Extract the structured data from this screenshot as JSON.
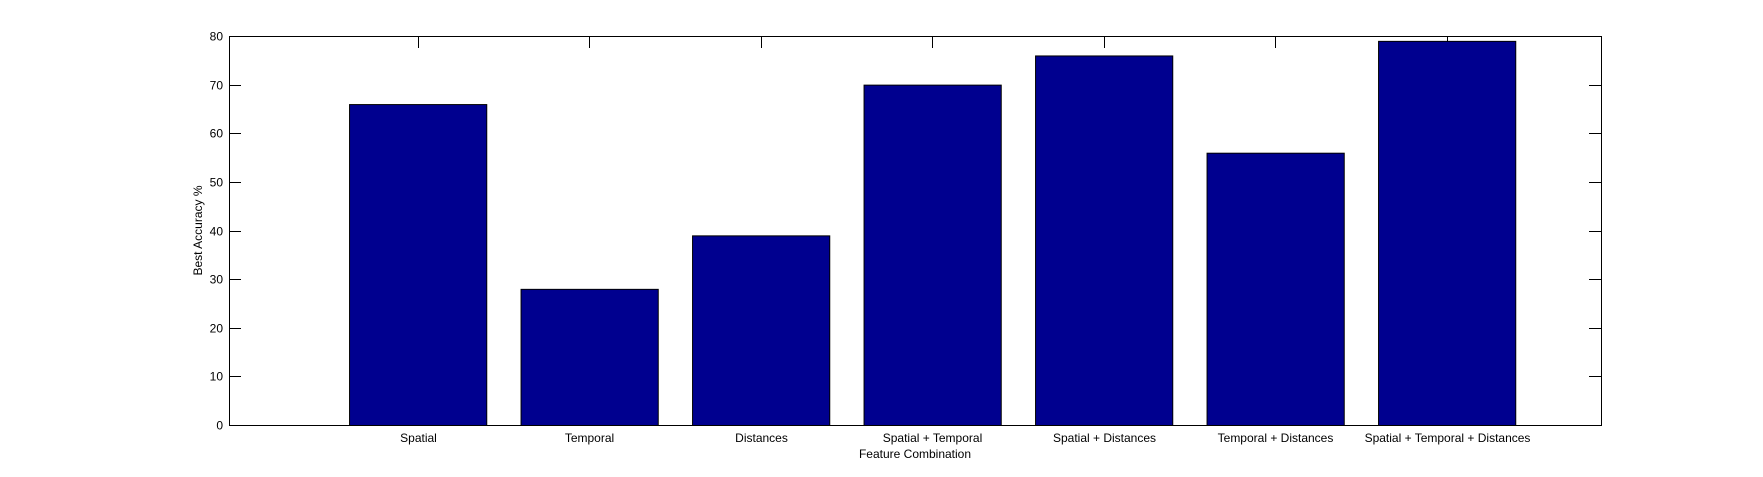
{
  "chart_data": {
    "type": "bar",
    "title": "",
    "xlabel": "Feature Combination",
    "ylabel": "Best Accuracy %",
    "categories": [
      "Spatial",
      "Temporal",
      "Distances",
      "Spatial + Temporal",
      "Spatial + Distances",
      "Temporal + Distances",
      "Spatial + Temporal + Distances"
    ],
    "values": [
      66,
      28,
      39,
      70,
      76,
      56,
      79
    ],
    "ylim": [
      0,
      80
    ],
    "xlim": [
      0.4,
      8.4
    ],
    "yticks": [
      "0",
      "10",
      "20",
      "30",
      "40",
      "50",
      "60",
      "70",
      "80"
    ],
    "grid": false,
    "legend": "none",
    "colors": {
      "bar_fill": "#00008F",
      "bar_edge": "#000000",
      "axes": "#000000",
      "background": "#FFFFFF"
    }
  }
}
